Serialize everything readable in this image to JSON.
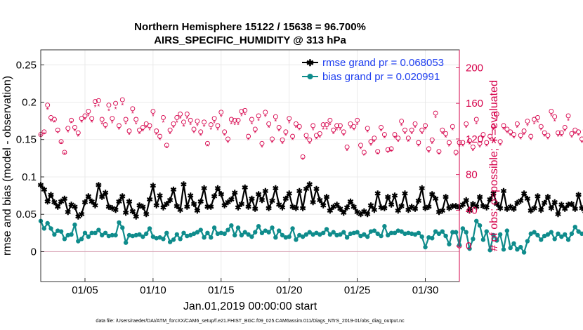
{
  "chart_data": {
    "type": "line",
    "title_line1": "Northern Hemisphere 15122 / 15638 = 96.700%",
    "title_line2": "AIRS_SPECIFIC_HUMIDITY @ 313 hPa",
    "xlabel": "Jan.01,2019 00:00:00 start",
    "ylabel_left": "rmse and bias (model - observation)",
    "ylabel_right": "# of obs: o=possible; ∗=evaluated",
    "footer": "data file: /Users/raeder/DAI/ATM_forcXX/CAM6_setup/f.e21.FHIST_BGC.f09_025.CAM6assim.011/Diags_NTrS_2019-01/obs_diag_output.nc",
    "xlim_days": [
      0.75,
      31.5
    ],
    "ylim_left": [
      -0.04,
      0.27
    ],
    "ylim_right": [
      -40,
      220
    ],
    "x_ticks": [
      {
        "day": 4,
        "label": "01/05"
      },
      {
        "day": 9,
        "label": "01/10"
      },
      {
        "day": 14,
        "label": "01/15"
      },
      {
        "day": 19,
        "label": "01/20"
      },
      {
        "day": 24,
        "label": "01/25"
      },
      {
        "day": 29,
        "label": "01/30"
      }
    ],
    "y_left_ticks": [
      {
        "value": 0,
        "label": "0"
      },
      {
        "value": 0.05,
        "label": "0.05"
      },
      {
        "value": 0.1,
        "label": "0.1"
      },
      {
        "value": 0.15,
        "label": "0.15"
      },
      {
        "value": 0.2,
        "label": "0.2"
      },
      {
        "value": 0.25,
        "label": "0.25"
      }
    ],
    "y_right_ticks": [
      {
        "value": 0,
        "label": "0"
      },
      {
        "value": 40,
        "label": "40"
      },
      {
        "value": 80,
        "label": "80"
      },
      {
        "value": 120,
        "label": "120"
      },
      {
        "value": 160,
        "label": "160"
      },
      {
        "value": 200,
        "label": "200"
      }
    ],
    "x_start_day": 0.75,
    "x_step_days": 0.25,
    "series": [
      {
        "name": "rmse grand pr = 0.068053",
        "color": "#000000",
        "axis": "left",
        "marker": "asterisk",
        "values": [
          0.089,
          0.083,
          0.067,
          0.076,
          0.066,
          0.06,
          0.067,
          0.071,
          0.053,
          0.063,
          0.06,
          0.047,
          0.05,
          0.066,
          0.074,
          0.067,
          0.062,
          0.089,
          0.073,
          0.079,
          0.06,
          0.058,
          0.056,
          0.067,
          0.074,
          0.052,
          0.067,
          0.054,
          0.047,
          0.062,
          0.06,
          0.05,
          0.07,
          0.088,
          0.062,
          0.075,
          0.059,
          0.064,
          0.069,
          0.083,
          0.061,
          0.056,
          0.09,
          0.06,
          0.075,
          0.064,
          0.055,
          0.067,
          0.085,
          0.06,
          0.06,
          0.074,
          0.085,
          0.077,
          0.062,
          0.066,
          0.07,
          0.079,
          0.059,
          0.064,
          0.086,
          0.06,
          0.071,
          0.057,
          0.077,
          0.069,
          0.081,
          0.058,
          0.068,
          0.085,
          0.063,
          0.059,
          0.071,
          0.078,
          0.06,
          0.058,
          0.081,
          0.058,
          0.084,
          0.09,
          0.066,
          0.084,
          0.069,
          0.062,
          0.073,
          0.055,
          0.06,
          0.063,
          0.057,
          0.052,
          0.059,
          0.067,
          0.06,
          0.053,
          0.05,
          0.054,
          0.05,
          0.062,
          0.056,
          0.078,
          0.059,
          0.058,
          0.073,
          0.063,
          0.075,
          0.055,
          0.061,
          0.078,
          0.056,
          0.06,
          0.057,
          0.068,
          0.085,
          0.058,
          0.06,
          0.077,
          0.071,
          0.053,
          0.055,
          0.073,
          0.058,
          0.061,
          0.061,
          0.059,
          0.063,
          0.069,
          0.055,
          0.064,
          0.06,
          0.073,
          0.061,
          0.059,
          0.07,
          0.078,
          0.064,
          0.058,
          0.081,
          0.057,
          0.06,
          0.057,
          0.065,
          0.068,
          0.078,
          0.071,
          0.055,
          0.058,
          0.074,
          0.056,
          0.065,
          0.073,
          0.058,
          0.066,
          0.05,
          0.063,
          0.057,
          0.063,
          0.064,
          0.057,
          0.076,
          0.058,
          0.054,
          0.057,
          0.072,
          0.062,
          0.06,
          0.075,
          0.06,
          0.07,
          0.059,
          0.062,
          0.068,
          0.074,
          0.062,
          0.085,
          0.065,
          0.069,
          0.092,
          0.058,
          0.071,
          0.064,
          0.098,
          0.07,
          0.055,
          0.058,
          0.072,
          0.064,
          0.054,
          0.074,
          0.052,
          0.065,
          0.07,
          0.069,
          0.074,
          0.072,
          0.078,
          0.064,
          0.076,
          0.056,
          0.06,
          0.066,
          0.077,
          0.067,
          0.068,
          0.081,
          0.08,
          0.071,
          0.073,
          0.06,
          0.065,
          0.057,
          0.068,
          0.065,
          0.069
        ]
      },
      {
        "name": "bias grand pr = 0.020991",
        "color": "#0f8c8c",
        "axis": "left",
        "marker": "filled-circle",
        "values": [
          0.041,
          0.031,
          0.038,
          0.031,
          0.023,
          0.028,
          0.027,
          0.017,
          0.022,
          0.023,
          0.036,
          0.014,
          0.017,
          0.025,
          0.02,
          0.025,
          0.025,
          0.029,
          0.022,
          0.025,
          0.021,
          0.022,
          0.022,
          0.039,
          0.032,
          0.012,
          0.022,
          0.021,
          0.022,
          0.023,
          0.02,
          0.024,
          0.031,
          0.02,
          0.018,
          0.019,
          0.017,
          0.025,
          0.013,
          0.016,
          0.023,
          0.017,
          0.025,
          0.021,
          0.022,
          0.024,
          0.026,
          0.029,
          0.019,
          0.025,
          0.019,
          0.032,
          0.024,
          0.025,
          0.024,
          0.029,
          0.035,
          0.022,
          0.032,
          0.022,
          0.026,
          0.023,
          0.02,
          0.026,
          0.034,
          0.025,
          0.028,
          0.026,
          0.032,
          0.019,
          0.028,
          0.022,
          0.019,
          0.02,
          0.031,
          0.016,
          0.022,
          0.02,
          0.023,
          0.026,
          0.023,
          0.025,
          0.023,
          0.025,
          0.03,
          0.023,
          0.026,
          0.022,
          0.023,
          0.026,
          0.019,
          0.024,
          0.025,
          0.026,
          0.021,
          0.023,
          0.02,
          0.027,
          0.028,
          0.024,
          0.021,
          0.034,
          0.022,
          0.025,
          0.025,
          0.028,
          0.027,
          0.024,
          0.025,
          0.024,
          0.023,
          0.025,
          0.02,
          0.006,
          0.019,
          0.018,
          0.027,
          0.024,
          0.027,
          0.021,
          0.01,
          0.026,
          0.026,
          0.009,
          0.031,
          0.026,
          0.004,
          0.017,
          0.041,
          0.035,
          0.016,
          0.027,
          0.002,
          0.022,
          0.015,
          0.023,
          0.003,
          0.028,
          0.005,
          0.011,
          0.003,
          0.006,
          -0.001,
          0.014,
          0.024,
          0.026,
          0.022,
          0.016,
          0.021,
          0.023,
          0.026,
          0.017,
          0.024,
          0.02,
          0.023,
          0.016,
          0.024,
          0.033,
          0.027,
          0.024,
          0.02,
          0.019,
          0.03,
          0.023,
          0.021,
          0.021,
          0.025,
          0.028,
          0.021,
          0.026,
          0.023,
          0.031,
          0.019,
          0.029,
          0.027,
          0.029,
          0.022,
          0.027,
          0.035,
          0.019,
          0.032,
          0.028,
          0.037,
          0.022,
          0.024,
          0.034,
          0.017,
          0.017,
          0.03,
          0.026,
          0.008,
          0.011,
          0.016,
          0.016,
          0.013,
          0.022,
          0.017,
          0.012,
          0.023,
          0.019,
          0.023,
          0.016,
          0.025,
          0.02,
          0.021,
          0.029,
          0.022,
          0.023,
          0.02,
          0.026,
          0.022,
          0.023,
          0.023,
          0.024,
          0.024
        ]
      },
      {
        "name": "possible",
        "color": "#d6004a",
        "axis": "right",
        "marker": "circle",
        "values": [
          125,
          128,
          158,
          144,
          142,
          130,
          117,
          105,
          132,
          141,
          133,
          127,
          143,
          146,
          151,
          143,
          162,
          163,
          142,
          136,
          158,
          143,
          160,
          135,
          164,
          142,
          129,
          154,
          142,
          130,
          133,
          137,
          135,
          151,
          129,
          123,
          144,
          113,
          130,
          137,
          144,
          148,
          139,
          148,
          141,
          131,
          140,
          128,
          139,
          115,
          136,
          143,
          135,
          150,
          128,
          120,
          142,
          141,
          141,
          151,
          152,
          123,
          142,
          131,
          146,
          115,
          150,
          137,
          120,
          145,
          133,
          119,
          128,
          143,
          123,
          137,
          134,
          100,
          124,
          119,
          135,
          124,
          126,
          136,
          136,
          141,
          130,
          135,
          135,
          128,
          111,
          137,
          134,
          141,
          113,
          105,
          132,
          117,
          121,
          106,
          133,
          125,
          108,
          109,
          125,
          121,
          140,
          130,
          121,
          130,
          137,
          116,
          130,
          135,
          109,
          119,
          149,
          106,
          130,
          126,
          116,
          134,
          105,
          116,
          116,
          137,
          118,
          111,
          142,
          115,
          125,
          116,
          123,
          134,
          148,
          117,
          135,
          131,
          128,
          125,
          137,
          124,
          129,
          140,
          123,
          142,
          144,
          134,
          127,
          124,
          151,
          145,
          127,
          127,
          133,
          146,
          126,
          130,
          128,
          120,
          130,
          134,
          135,
          104,
          123,
          107,
          134,
          115,
          114,
          118,
          130,
          118,
          133,
          128,
          135,
          137,
          115,
          120,
          118,
          112,
          124,
          116,
          153,
          116,
          136,
          113,
          118,
          129,
          114,
          142,
          125,
          130,
          123,
          113,
          119,
          122,
          126,
          120,
          128,
          131,
          111,
          104,
          107,
          150,
          137,
          143,
          125,
          112,
          131,
          129,
          133,
          136,
          129,
          126,
          123,
          135,
          123,
          102,
          121,
          114,
          120,
          112,
          120,
          140,
          135,
          100
        ]
      },
      {
        "name": "evaluated",
        "color": "#d6004a",
        "axis": "right",
        "marker": "asterisk",
        "values": [
          124,
          126,
          153,
          140,
          139,
          127,
          115,
          103,
          128,
          138,
          129,
          123,
          139,
          142,
          146,
          139,
          156,
          157,
          137,
          132,
          152,
          138,
          154,
          131,
          158,
          137,
          125,
          149,
          137,
          126,
          129,
          133,
          130,
          146,
          125,
          119,
          139,
          110,
          126,
          133,
          139,
          143,
          134,
          143,
          136,
          127,
          135,
          124,
          134,
          112,
          131,
          138,
          130,
          145,
          124,
          116,
          137,
          136,
          136,
          146,
          147,
          119,
          137,
          127,
          141,
          111,
          145,
          133,
          116,
          140,
          129,
          115,
          124,
          138,
          119,
          133,
          130,
          97,
          120,
          115,
          130,
          120,
          122,
          131,
          131,
          136,
          126,
          130,
          130,
          124,
          107,
          132,
          130,
          136,
          109,
          102,
          128,
          113,
          117,
          103,
          129,
          121,
          105,
          106,
          121,
          117,
          135,
          126,
          117,
          126,
          133,
          112,
          126,
          131,
          105,
          115,
          144,
          103,
          126,
          122,
          112,
          130,
          102,
          112,
          112,
          133,
          114,
          107,
          137,
          111,
          121,
          112,
          119,
          130,
          143,
          113,
          131,
          127,
          124,
          121,
          133,
          120,
          125,
          135,
          119,
          137,
          139,
          130,
          123,
          120,
          146,
          140,
          123,
          123,
          129,
          141,
          122,
          126,
          124,
          116,
          126,
          130,
          131,
          101,
          119,
          104,
          130,
          111,
          110,
          114,
          126,
          114,
          129,
          124,
          131,
          133,
          111,
          116,
          114,
          108,
          120,
          112,
          148,
          112,
          132,
          109,
          114,
          125,
          110,
          137,
          121,
          126,
          119,
          109,
          115,
          118,
          122,
          116,
          124,
          127,
          107,
          101,
          104,
          145,
          133,
          138,
          121,
          108,
          127,
          125,
          129,
          132,
          125,
          122,
          119,
          131,
          119,
          99,
          117,
          110,
          116,
          108,
          116,
          135,
          131,
          97
        ]
      }
    ],
    "end_point": {
      "day": 31.5,
      "value": 0,
      "axis": "right",
      "marker": "circle",
      "color": "#d6004a"
    },
    "zero_line_color": "#d9a3b5",
    "grid": true,
    "legend_position": "top-right"
  }
}
